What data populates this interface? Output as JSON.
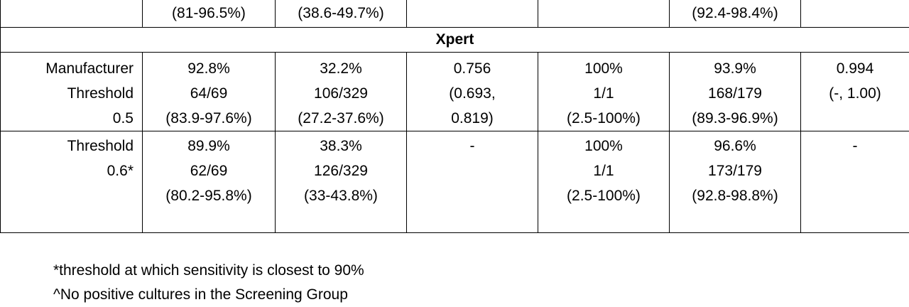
{
  "table": {
    "rows": [
      {
        "cells": [
          [],
          [
            "(81-96.5%)"
          ],
          [
            "(38.6-49.7%)"
          ],
          [],
          [],
          [
            "(92.4-98.4%)"
          ],
          []
        ]
      },
      {
        "section": "Xpert"
      },
      {
        "cells": [
          [
            "Manufacturer",
            "Threshold",
            "0.5"
          ],
          [
            "92.8%",
            "64/69",
            "(83.9-97.6%)"
          ],
          [
            "32.2%",
            "106/329",
            "(27.2-37.6%)"
          ],
          [
            "0.756",
            "(0.693,",
            "0.819)"
          ],
          [
            "100%",
            "1/1",
            "(2.5-100%)"
          ],
          [
            "93.9%",
            "168/179",
            "(89.3-96.9%)"
          ],
          [
            "0.994",
            "(-, 1.00)"
          ]
        ]
      },
      {
        "cells": [
          [
            "Threshold",
            "0.6*"
          ],
          [
            "89.9%",
            "62/69",
            "(80.2-95.8%)"
          ],
          [
            "38.3%",
            "126/329",
            "(33-43.8%)"
          ],
          [
            "-"
          ],
          [
            "100%",
            "1/1",
            "(2.5-100%)"
          ],
          [
            "96.6%",
            "173/179",
            "(92.8-98.8%)"
          ],
          [
            "-"
          ]
        ]
      }
    ]
  },
  "footnotes": [
    "*threshold at which sensitivity is closest to 90%",
    "^No positive cultures in the Screening Group"
  ]
}
